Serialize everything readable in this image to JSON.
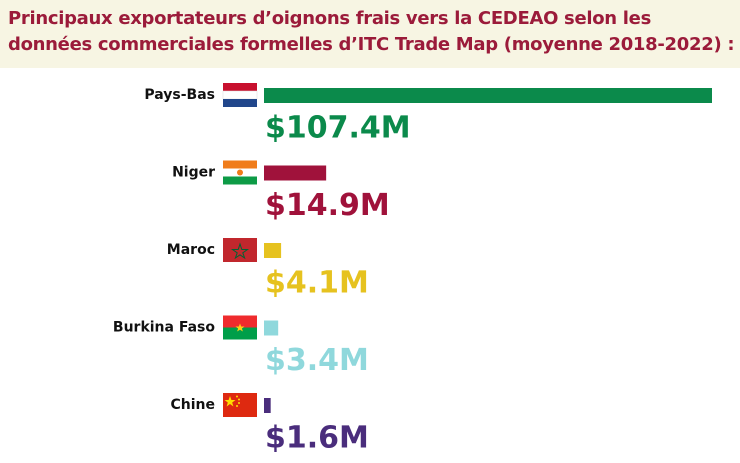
{
  "chart_data": {
    "type": "hbar",
    "title": "Principaux exportateurs d’oignons frais vers la CEDEAO selon les données commerciales formelles d’ITC Trade Map (moyenne 2018-2022) :",
    "categories": [
      "Pays-Bas",
      "Niger",
      "Maroc",
      "Burkina Faso",
      "Chine"
    ],
    "values": [
      107.4,
      14.9,
      4.1,
      3.4,
      1.6
    ],
    "value_labels": [
      "$107.4M",
      "$14.9M",
      "$4.1M",
      "$3.4M",
      "$1.6M"
    ],
    "colors": [
      "#0b8a4b",
      "#a0123b",
      "#e6c21f",
      "#8fd8dc",
      "#4a2d7c"
    ]
  }
}
